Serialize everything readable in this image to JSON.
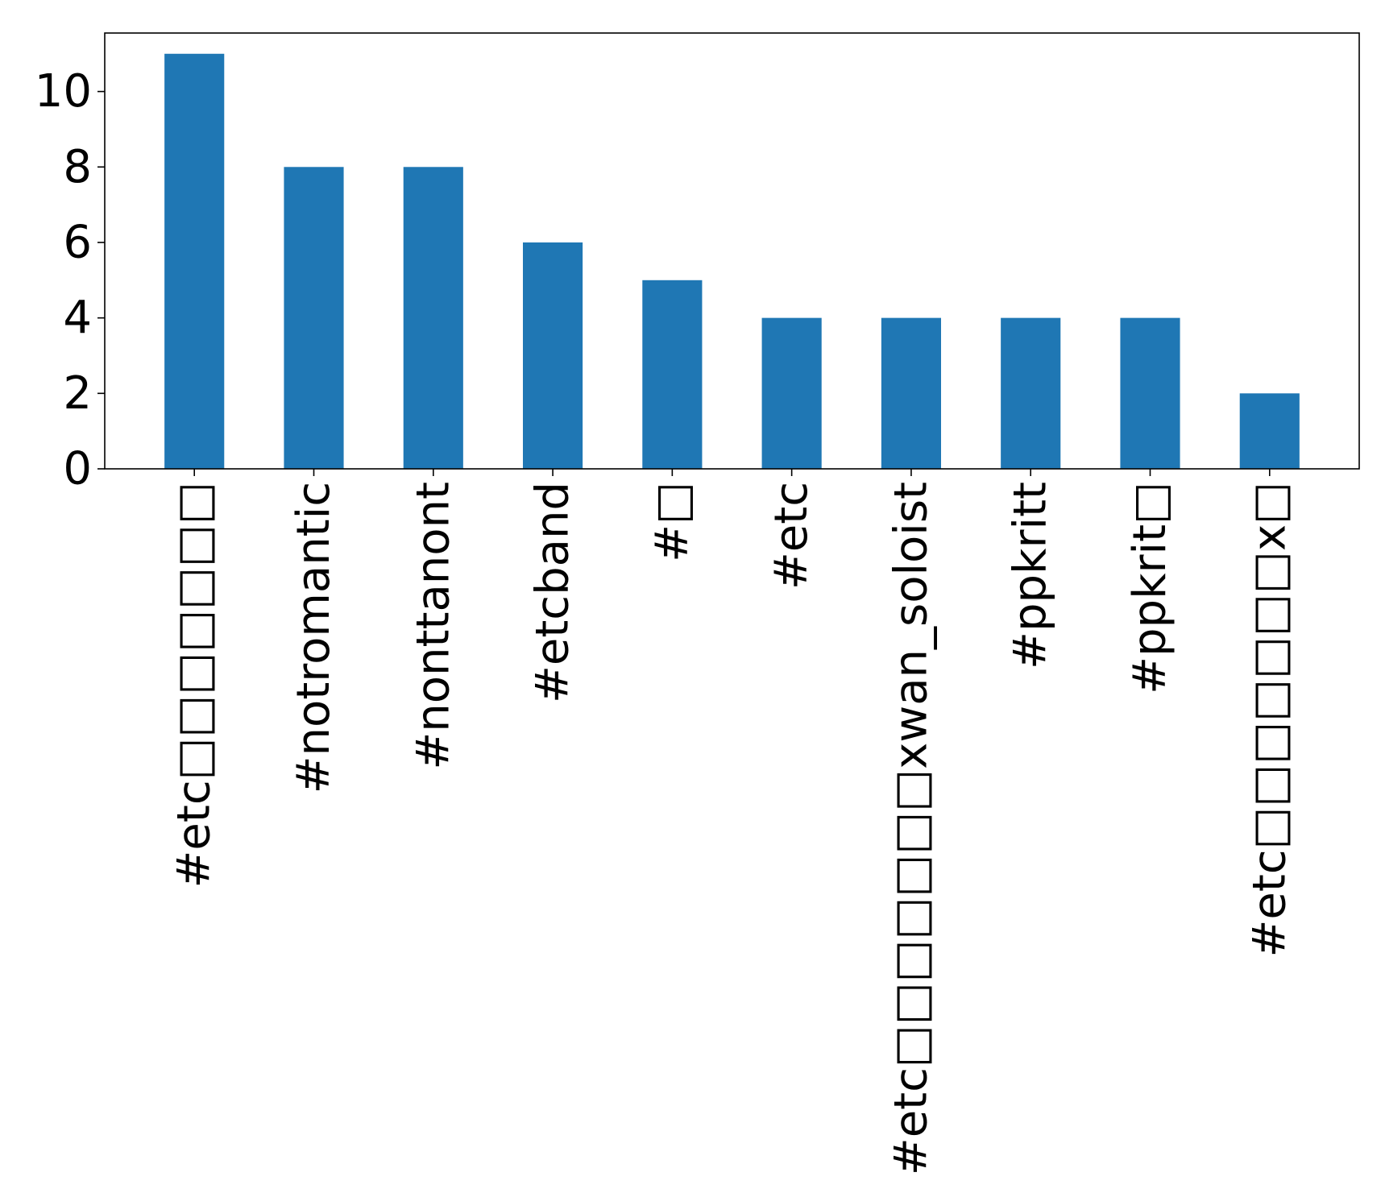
{
  "chart_data": {
    "type": "bar",
    "title": "",
    "xlabel": "",
    "ylabel": "",
    "categories": [
      "#etc□□□□□□□",
      "#notromantic",
      "#nonttanont",
      "#etcband",
      "#□",
      "#etc",
      "#etc□□□□□□□xwan_soloist",
      "#ppkritt",
      "#ppkrit□",
      "#etc□□□□□□□x□"
    ],
    "values": [
      11,
      8,
      8,
      6,
      5,
      4,
      4,
      4,
      4,
      2
    ],
    "ylim": [
      0,
      11.55
    ],
    "yticks": [
      "0",
      "2",
      "4",
      "6",
      "8",
      "10"
    ],
    "bar_color": "#1f77b4",
    "grid": false,
    "legend": "none"
  }
}
